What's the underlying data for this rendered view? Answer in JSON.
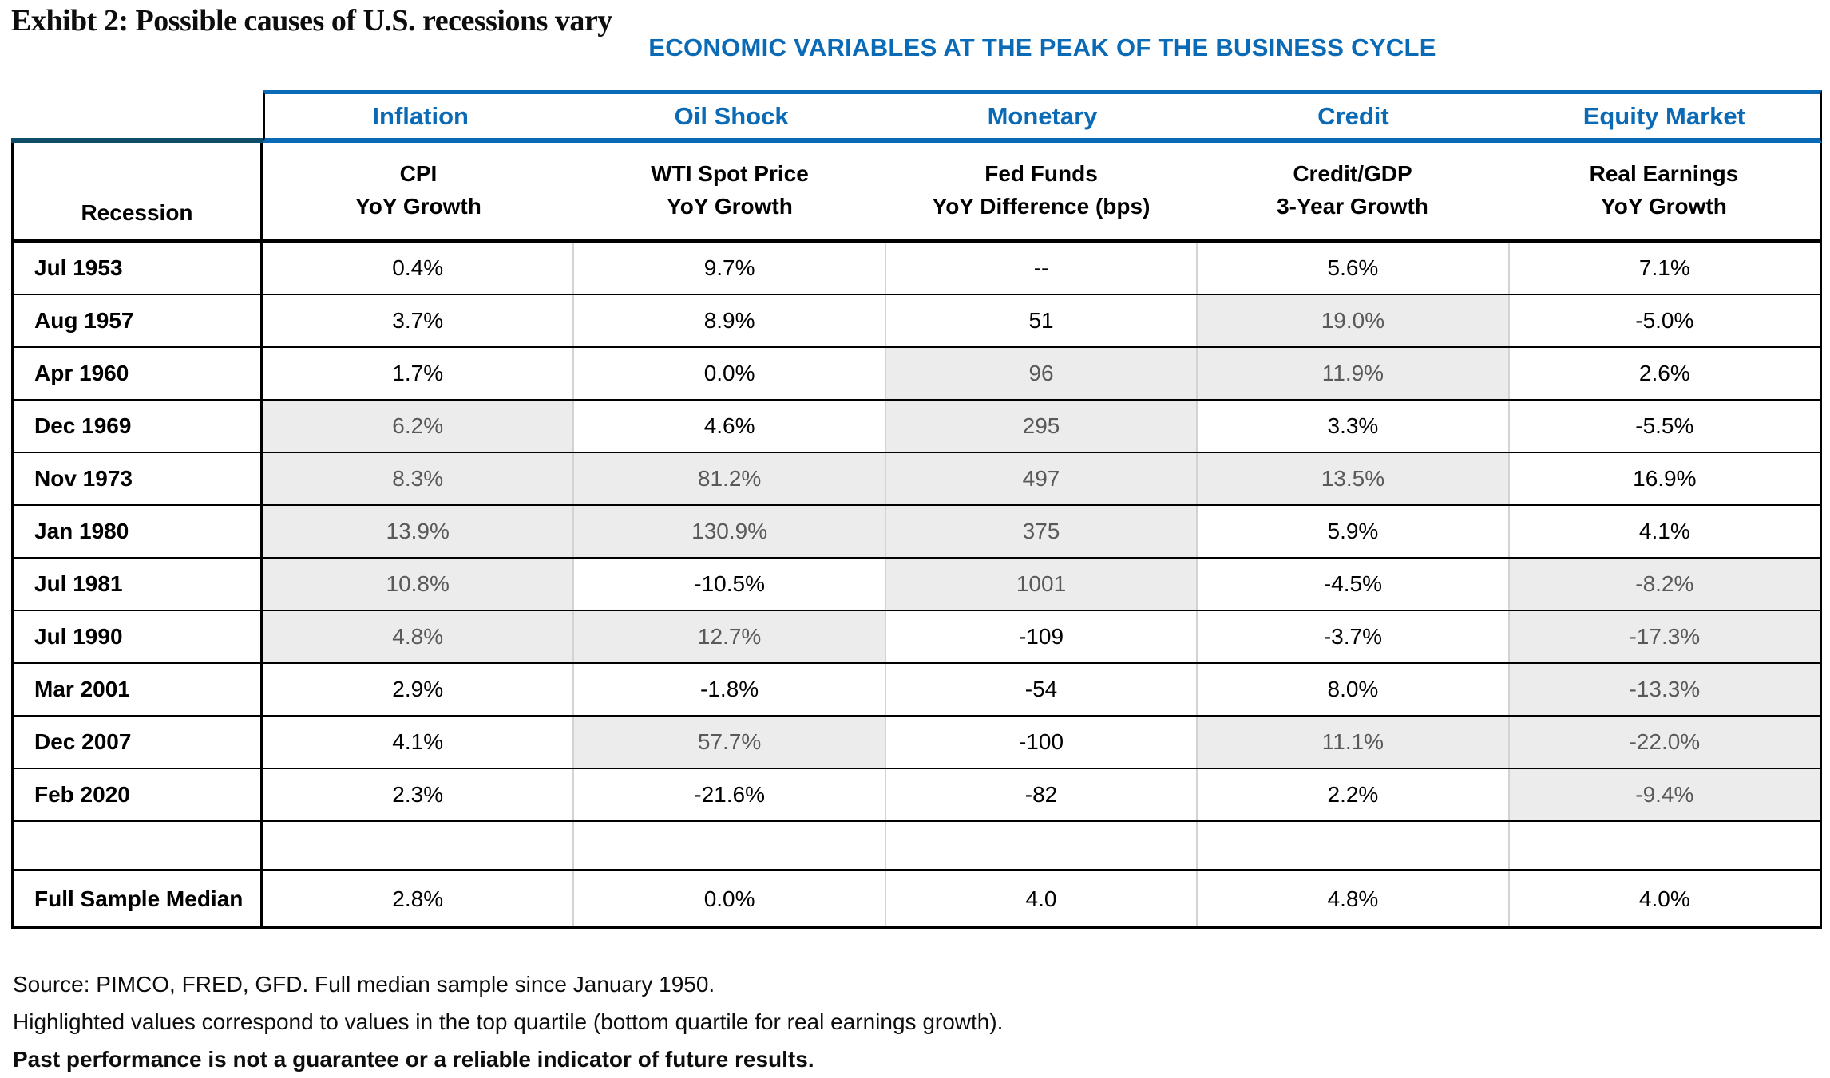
{
  "title": "Exhibt 2: Possible causes of U.S. recessions vary",
  "table": {
    "banner": "ECONOMIC VARIABLES AT THE PEAK OF THE BUSINESS CYCLE",
    "row_header": "Recession",
    "group_headers": [
      "Inflation",
      "Oil Shock",
      "Monetary",
      "Credit",
      "Equity Market"
    ],
    "col_headers": [
      "CPI\nYoY Growth",
      "WTI Spot Price\nYoY Growth",
      "Fed Funds\nYoY Difference (bps)",
      "Credit/GDP\n3-Year Growth",
      "Real Earnings\nYoY Growth"
    ],
    "highlight_color": "#ececec",
    "accent_blue": "#0b6ab5",
    "accent_dark_blue": "#0e4d68",
    "rows": [
      {
        "label": "Jul 1953",
        "values": [
          "0.4%",
          "9.7%",
          "--",
          "5.6%",
          "7.1%"
        ],
        "hl": [
          0,
          0,
          0,
          0,
          0
        ]
      },
      {
        "label": "Aug 1957",
        "values": [
          "3.7%",
          "8.9%",
          "51",
          "19.0%",
          "-5.0%"
        ],
        "hl": [
          0,
          0,
          0,
          1,
          0
        ]
      },
      {
        "label": "Apr 1960",
        "values": [
          "1.7%",
          "0.0%",
          "96",
          "11.9%",
          "2.6%"
        ],
        "hl": [
          0,
          0,
          1,
          1,
          0
        ]
      },
      {
        "label": "Dec 1969",
        "values": [
          "6.2%",
          "4.6%",
          "295",
          "3.3%",
          "-5.5%"
        ],
        "hl": [
          1,
          0,
          1,
          0,
          0
        ]
      },
      {
        "label": "Nov 1973",
        "values": [
          "8.3%",
          "81.2%",
          "497",
          "13.5%",
          "16.9%"
        ],
        "hl": [
          1,
          1,
          1,
          1,
          0
        ]
      },
      {
        "label": "Jan 1980",
        "values": [
          "13.9%",
          "130.9%",
          "375",
          "5.9%",
          "4.1%"
        ],
        "hl": [
          1,
          1,
          1,
          0,
          0
        ]
      },
      {
        "label": "Jul 1981",
        "values": [
          "10.8%",
          "-10.5%",
          "1001",
          "-4.5%",
          "-8.2%"
        ],
        "hl": [
          1,
          0,
          1,
          0,
          1
        ]
      },
      {
        "label": "Jul 1990",
        "values": [
          "4.8%",
          "12.7%",
          "-109",
          "-3.7%",
          "-17.3%"
        ],
        "hl": [
          1,
          1,
          0,
          0,
          1
        ]
      },
      {
        "label": "Mar 2001",
        "values": [
          "2.9%",
          "-1.8%",
          "-54",
          "8.0%",
          "-13.3%"
        ],
        "hl": [
          0,
          0,
          0,
          0,
          1
        ]
      },
      {
        "label": "Dec 2007",
        "values": [
          "4.1%",
          "57.7%",
          "-100",
          "11.1%",
          "-22.0%"
        ],
        "hl": [
          0,
          1,
          0,
          1,
          1
        ]
      },
      {
        "label": "Feb 2020",
        "values": [
          "2.3%",
          "-21.6%",
          "-82",
          "2.2%",
          "-9.4%"
        ],
        "hl": [
          0,
          0,
          0,
          0,
          1
        ]
      },
      {
        "label": "",
        "values": [
          "",
          "",
          "",
          "",
          ""
        ],
        "hl": [
          0,
          0,
          0,
          0,
          0
        ],
        "blank": true
      },
      {
        "label": "Full Sample Median",
        "values": [
          "2.8%",
          "0.0%",
          "4.0",
          "4.8%",
          "4.0%"
        ],
        "hl": [
          0,
          0,
          0,
          0,
          0
        ],
        "median": true
      }
    ]
  },
  "footnotes": [
    "Source: PIMCO, FRED, GFD. Full median sample since January 1950.",
    "Highlighted values correspond to values in the top quartile (bottom quartile for real earnings growth).",
    "Past performance is not a guarantee or a reliable indicator of future results."
  ]
}
